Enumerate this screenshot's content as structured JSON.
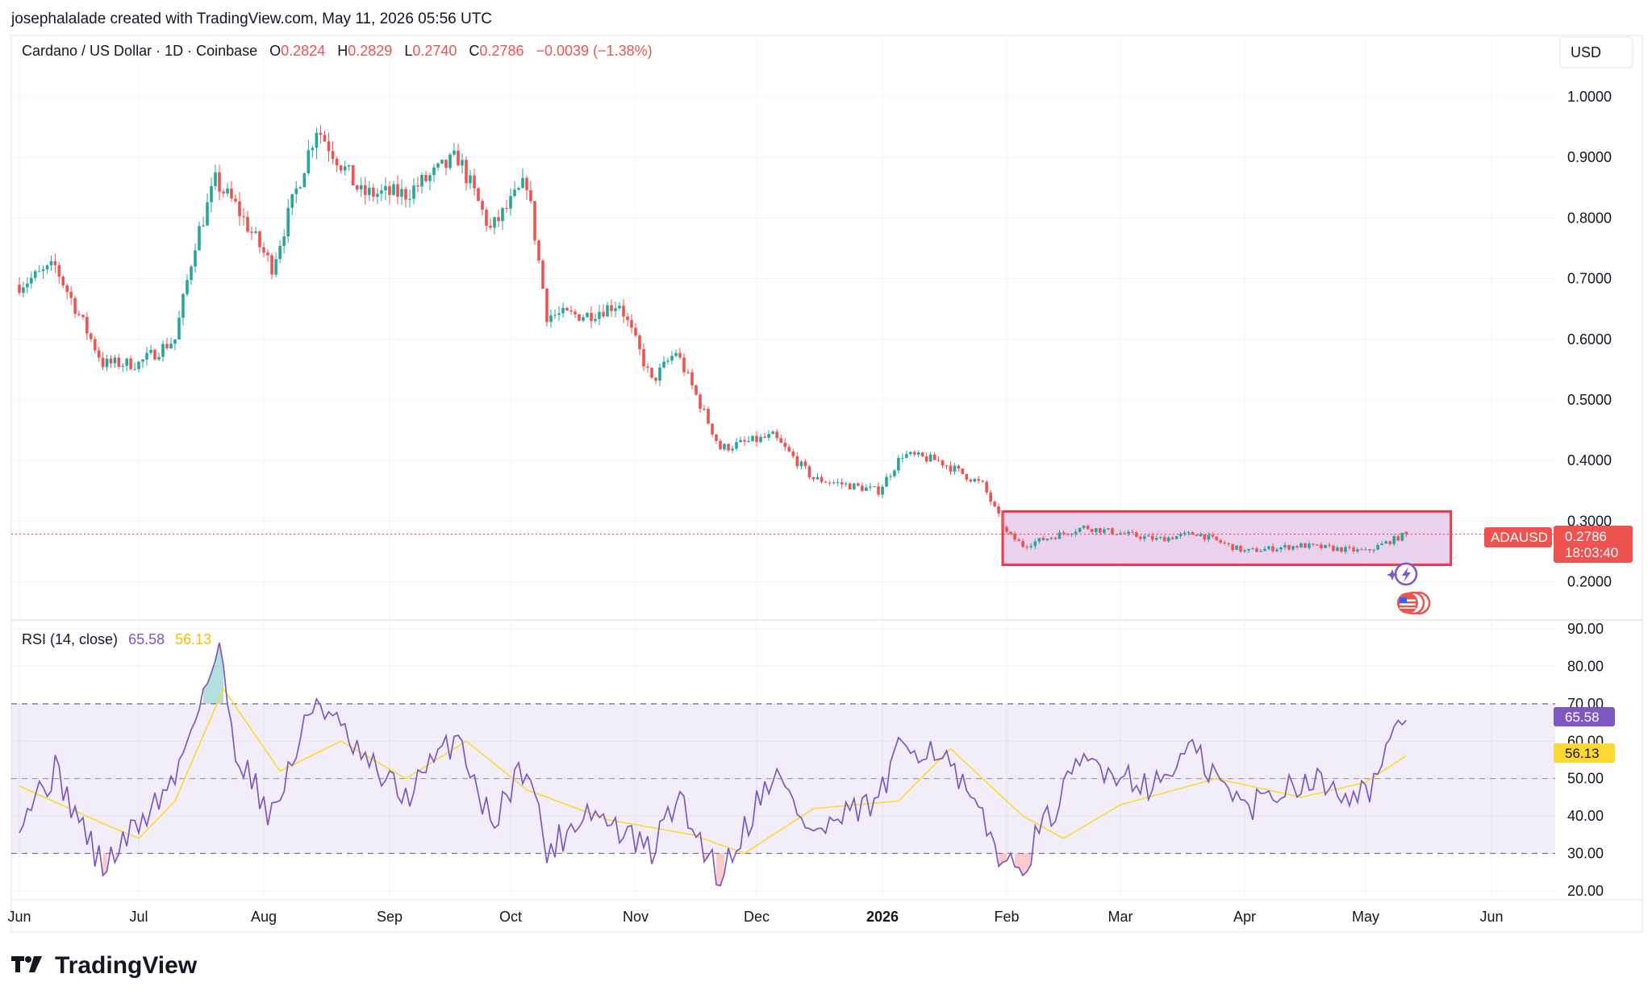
{
  "header": {
    "attribution": "josephalalade created with TradingView.com, May 11, 2026 05:56 UTC"
  },
  "legend": {
    "symbol": "Cardano / US Dollar · 1D · Coinbase",
    "o_label": "O",
    "o": "0.2824",
    "h_label": "H",
    "h": "0.2829",
    "l_label": "L",
    "l": "0.2740",
    "c_label": "C",
    "c": "0.2786",
    "change": "−0.0039 (−1.38%)"
  },
  "currency": "USD",
  "price_tag": {
    "symbol": "ADAUSD",
    "price": "0.2786",
    "countdown": "18:03:40"
  },
  "rsi_legend": {
    "name": "RSI (14, close)",
    "rsi": "65.58",
    "ma": "56.13"
  },
  "logo": {
    "text": "TradingView"
  },
  "colors": {
    "up": "#26a69a",
    "down": "#ef5350",
    "rsi_line": "#7e57c2",
    "rsi_ma": "#fdd835",
    "range_box_stroke": "#f23645",
    "range_box_fill": "#e1bee7"
  },
  "chart_data": [
    {
      "type": "candlestick",
      "title": "Cardano / US Dollar · 1D · Coinbase",
      "y_axis_ticks": [
        "1.0000",
        "0.9000",
        "0.8000",
        "0.7000",
        "0.6000",
        "0.5000",
        "0.4000",
        "0.3000",
        "0.2000"
      ],
      "ylim": [
        0.137,
        1.101
      ],
      "x_axis_ticks": [
        "Jun",
        "Jul",
        "Aug",
        "Sep",
        "Oct",
        "Nov",
        "Dec",
        "2026",
        "Feb",
        "Mar",
        "Apr",
        "May",
        "Jun"
      ],
      "close_series": [
        {
          "date": "2025-06-01",
          "close": 0.69
        },
        {
          "date": "2025-06-10",
          "close": 0.72
        },
        {
          "date": "2025-06-22",
          "close": 0.56
        },
        {
          "date": "2025-07-01",
          "close": 0.56
        },
        {
          "date": "2025-07-10",
          "close": 0.6
        },
        {
          "date": "2025-07-15",
          "close": 0.76
        },
        {
          "date": "2025-07-20",
          "close": 0.86
        },
        {
          "date": "2025-07-25",
          "close": 0.82
        },
        {
          "date": "2025-08-03",
          "close": 0.72
        },
        {
          "date": "2025-08-14",
          "close": 0.95
        },
        {
          "date": "2025-08-25",
          "close": 0.84
        },
        {
          "date": "2025-09-05",
          "close": 0.84
        },
        {
          "date": "2025-09-18",
          "close": 0.9
        },
        {
          "date": "2025-09-26",
          "close": 0.78
        },
        {
          "date": "2025-10-05",
          "close": 0.86
        },
        {
          "date": "2025-10-10",
          "close": 0.64
        },
        {
          "date": "2025-10-20",
          "close": 0.64
        },
        {
          "date": "2025-10-28",
          "close": 0.66
        },
        {
          "date": "2025-11-05",
          "close": 0.53
        },
        {
          "date": "2025-11-11",
          "close": 0.58
        },
        {
          "date": "2025-11-22",
          "close": 0.42
        },
        {
          "date": "2025-12-05",
          "close": 0.44
        },
        {
          "date": "2025-12-15",
          "close": 0.37
        },
        {
          "date": "2025-12-31",
          "close": 0.35
        },
        {
          "date": "2026-01-06",
          "close": 0.41
        },
        {
          "date": "2026-01-15",
          "close": 0.4
        },
        {
          "date": "2026-01-26",
          "close": 0.36
        },
        {
          "date": "2026-02-01",
          "close": 0.28
        },
        {
          "date": "2026-02-05",
          "close": 0.26
        },
        {
          "date": "2026-02-20",
          "close": 0.29
        },
        {
          "date": "2026-03-10",
          "close": 0.27
        },
        {
          "date": "2026-03-20",
          "close": 0.28
        },
        {
          "date": "2026-04-01",
          "close": 0.25
        },
        {
          "date": "2026-04-15",
          "close": 0.26
        },
        {
          "date": "2026-05-01",
          "close": 0.25
        },
        {
          "date": "2026-05-11",
          "close": 0.2786
        }
      ],
      "last": {
        "open": 0.2824,
        "high": 0.2829,
        "low": 0.274,
        "close": 0.2786
      },
      "annotations": [
        {
          "type": "rectangle",
          "from": "2026-01-31",
          "to": "2026-05-22",
          "low": 0.228,
          "high": 0.316
        }
      ]
    },
    {
      "type": "line",
      "title": "RSI (14, close)",
      "y_axis_ticks": [
        "90.00",
        "80.00",
        "70.00",
        "60.00",
        "50.00",
        "40.00",
        "30.00",
        "20.00"
      ],
      "ylim": [
        17.6,
        92.4
      ],
      "bands": {
        "upper": 70,
        "middle": 50,
        "lower": 30
      },
      "series": [
        {
          "name": "RSI",
          "values_by_date": [
            {
              "date": "2025-06-01",
              "value": 40
            },
            {
              "date": "2025-06-10",
              "value": 52
            },
            {
              "date": "2025-06-22",
              "value": 26
            },
            {
              "date": "2025-07-01",
              "value": 38
            },
            {
              "date": "2025-07-10",
              "value": 50
            },
            {
              "date": "2025-07-15",
              "value": 68
            },
            {
              "date": "2025-07-21",
              "value": 84
            },
            {
              "date": "2025-07-25",
              "value": 58
            },
            {
              "date": "2025-08-03",
              "value": 40
            },
            {
              "date": "2025-08-14",
              "value": 72
            },
            {
              "date": "2025-08-25",
              "value": 55
            },
            {
              "date": "2025-09-05",
              "value": 45
            },
            {
              "date": "2025-09-18",
              "value": 62
            },
            {
              "date": "2025-09-26",
              "value": 38
            },
            {
              "date": "2025-10-05",
              "value": 55
            },
            {
              "date": "2025-10-10",
              "value": 30
            },
            {
              "date": "2025-10-20",
              "value": 42
            },
            {
              "date": "2025-11-05",
              "value": 30
            },
            {
              "date": "2025-11-11",
              "value": 45
            },
            {
              "date": "2025-11-22",
              "value": 24
            },
            {
              "date": "2025-12-05",
              "value": 52
            },
            {
              "date": "2025-12-15",
              "value": 35
            },
            {
              "date": "2025-12-31",
              "value": 44
            },
            {
              "date": "2026-01-06",
              "value": 59
            },
            {
              "date": "2026-01-15",
              "value": 58
            },
            {
              "date": "2026-01-26",
              "value": 38
            },
            {
              "date": "2026-02-03",
              "value": 24
            },
            {
              "date": "2026-02-20",
              "value": 55
            },
            {
              "date": "2026-03-10",
              "value": 48
            },
            {
              "date": "2026-03-18",
              "value": 58
            },
            {
              "date": "2026-04-01",
              "value": 42
            },
            {
              "date": "2026-04-15",
              "value": 50
            },
            {
              "date": "2026-05-01",
              "value": 46
            },
            {
              "date": "2026-05-11",
              "value": 65.58
            }
          ]
        },
        {
          "name": "RSI-based MA",
          "values_by_date": [
            {
              "date": "2025-06-01",
              "value": 48
            },
            {
              "date": "2025-06-22",
              "value": 38
            },
            {
              "date": "2025-07-01",
              "value": 34
            },
            {
              "date": "2025-07-10",
              "value": 44
            },
            {
              "date": "2025-07-22",
              "value": 74
            },
            {
              "date": "2025-08-05",
              "value": 52
            },
            {
              "date": "2025-08-20",
              "value": 60
            },
            {
              "date": "2025-09-05",
              "value": 50
            },
            {
              "date": "2025-09-20",
              "value": 60
            },
            {
              "date": "2025-10-05",
              "value": 47
            },
            {
              "date": "2025-10-25",
              "value": 39
            },
            {
              "date": "2025-11-15",
              "value": 35
            },
            {
              "date": "2025-11-28",
              "value": 30
            },
            {
              "date": "2025-12-15",
              "value": 42
            },
            {
              "date": "2026-01-05",
              "value": 44
            },
            {
              "date": "2026-01-18",
              "value": 58
            },
            {
              "date": "2026-02-05",
              "value": 40
            },
            {
              "date": "2026-02-15",
              "value": 34
            },
            {
              "date": "2026-03-01",
              "value": 43
            },
            {
              "date": "2026-03-25",
              "value": 50
            },
            {
              "date": "2026-04-15",
              "value": 45
            },
            {
              "date": "2026-05-01",
              "value": 49
            },
            {
              "date": "2026-05-11",
              "value": 56.13
            }
          ]
        }
      ]
    }
  ]
}
